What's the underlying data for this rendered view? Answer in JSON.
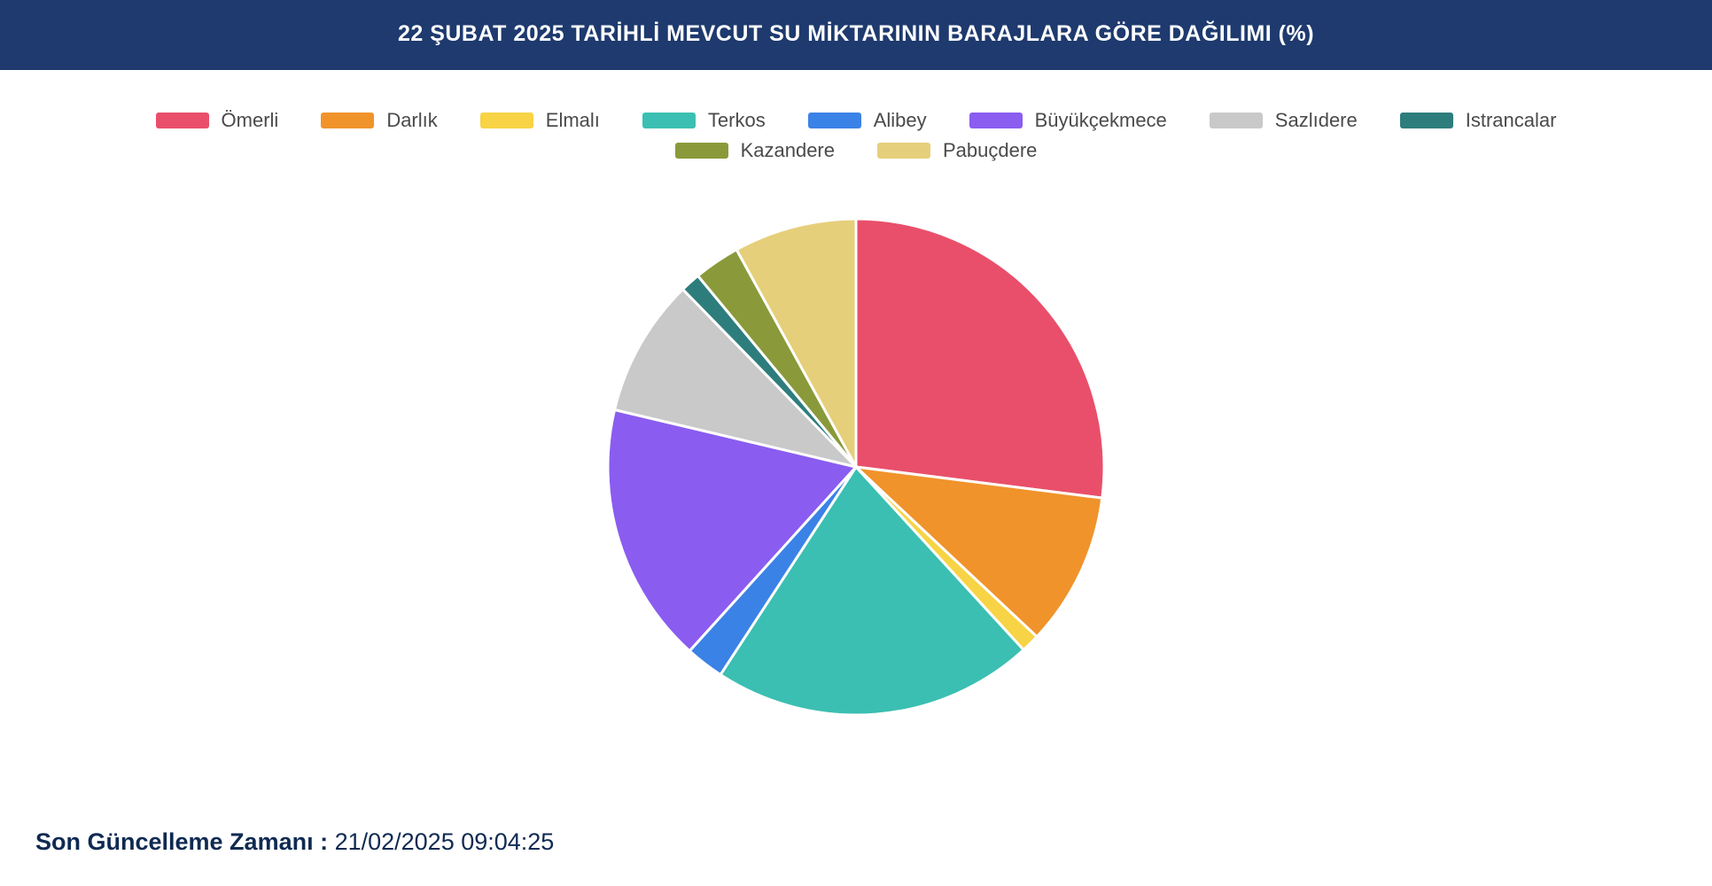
{
  "header": {
    "title": "22 ŞUBAT 2025 TARİHLİ MEVCUT SU MİKTARININ BARAJLARA GÖRE DAĞILIMI (%)",
    "background_color": "#1e3a6e",
    "title_color": "#ffffff",
    "title_fontsize": 25,
    "title_fontweight": 700
  },
  "chart": {
    "type": "pie",
    "background_color": "#ffffff",
    "slice_border_color": "#ffffff",
    "slice_border_width": 3,
    "radius": 280,
    "start_angle_deg": 0,
    "direction": "clockwise",
    "series": [
      {
        "label": "Ömerli",
        "value": 27.0,
        "color": "#e94f6a"
      },
      {
        "label": "Darlık",
        "value": 10.0,
        "color": "#f0932b"
      },
      {
        "label": "Elmalı",
        "value": 1.2,
        "color": "#f7d345"
      },
      {
        "label": "Terkos",
        "value": 21.0,
        "color": "#3bbfb2"
      },
      {
        "label": "Alibey",
        "value": 2.5,
        "color": "#3b82e6"
      },
      {
        "label": "Büyükçekmece",
        "value": 17.0,
        "color": "#8a5cf0"
      },
      {
        "label": "Sazlıdere",
        "value": 9.0,
        "color": "#c9c9c9"
      },
      {
        "label": "Istrancalar",
        "value": 1.3,
        "color": "#2e7d7d"
      },
      {
        "label": "Kazandere",
        "value": 3.0,
        "color": "#8a9a3a"
      },
      {
        "label": "Pabuçdere",
        "value": 8.0,
        "color": "#e6cf7a"
      }
    ],
    "legend": {
      "swatch_width": 60,
      "swatch_height": 18,
      "swatch_radius": 3,
      "label_fontsize": 22,
      "label_color": "#4a4a4a",
      "row1_count": 8,
      "row2_count": 2
    }
  },
  "footer": {
    "label": "Son Güncelleme Zamanı :",
    "value": " 21/02/2025 09:04:25",
    "color": "#0f2a52",
    "fontsize": 27
  }
}
